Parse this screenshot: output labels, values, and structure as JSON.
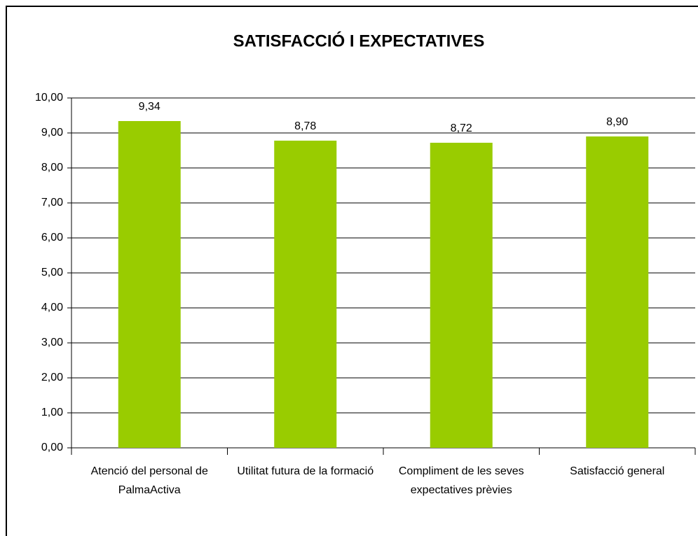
{
  "chart_data": {
    "type": "bar",
    "title": "SATISFACCIÓ I EXPECTATIVES",
    "categories": [
      "Atenció del personal de PalmaActiva",
      "Utilitat futura de la formació",
      "Compliment de les seves expectatives prèvies",
      "Satisfacció general"
    ],
    "values": [
      9.34,
      8.78,
      8.72,
      8.9
    ],
    "value_labels": [
      "9,34",
      "8,78",
      "8,72",
      "8,90"
    ],
    "color": "#99cc00",
    "ylim": [
      0,
      10
    ],
    "yticks": [
      {
        "value": 0,
        "label": "0,00"
      },
      {
        "value": 1,
        "label": "1,00"
      },
      {
        "value": 2,
        "label": "2,00"
      },
      {
        "value": 3,
        "label": "3,00"
      },
      {
        "value": 4,
        "label": "4,00"
      },
      {
        "value": 5,
        "label": "5,00"
      },
      {
        "value": 6,
        "label": "6,00"
      },
      {
        "value": 7,
        "label": "7,00"
      },
      {
        "value": 8,
        "label": "8,00"
      },
      {
        "value": 9,
        "label": "9,00"
      },
      {
        "value": 10,
        "label": "10,00"
      }
    ],
    "grid": true
  }
}
